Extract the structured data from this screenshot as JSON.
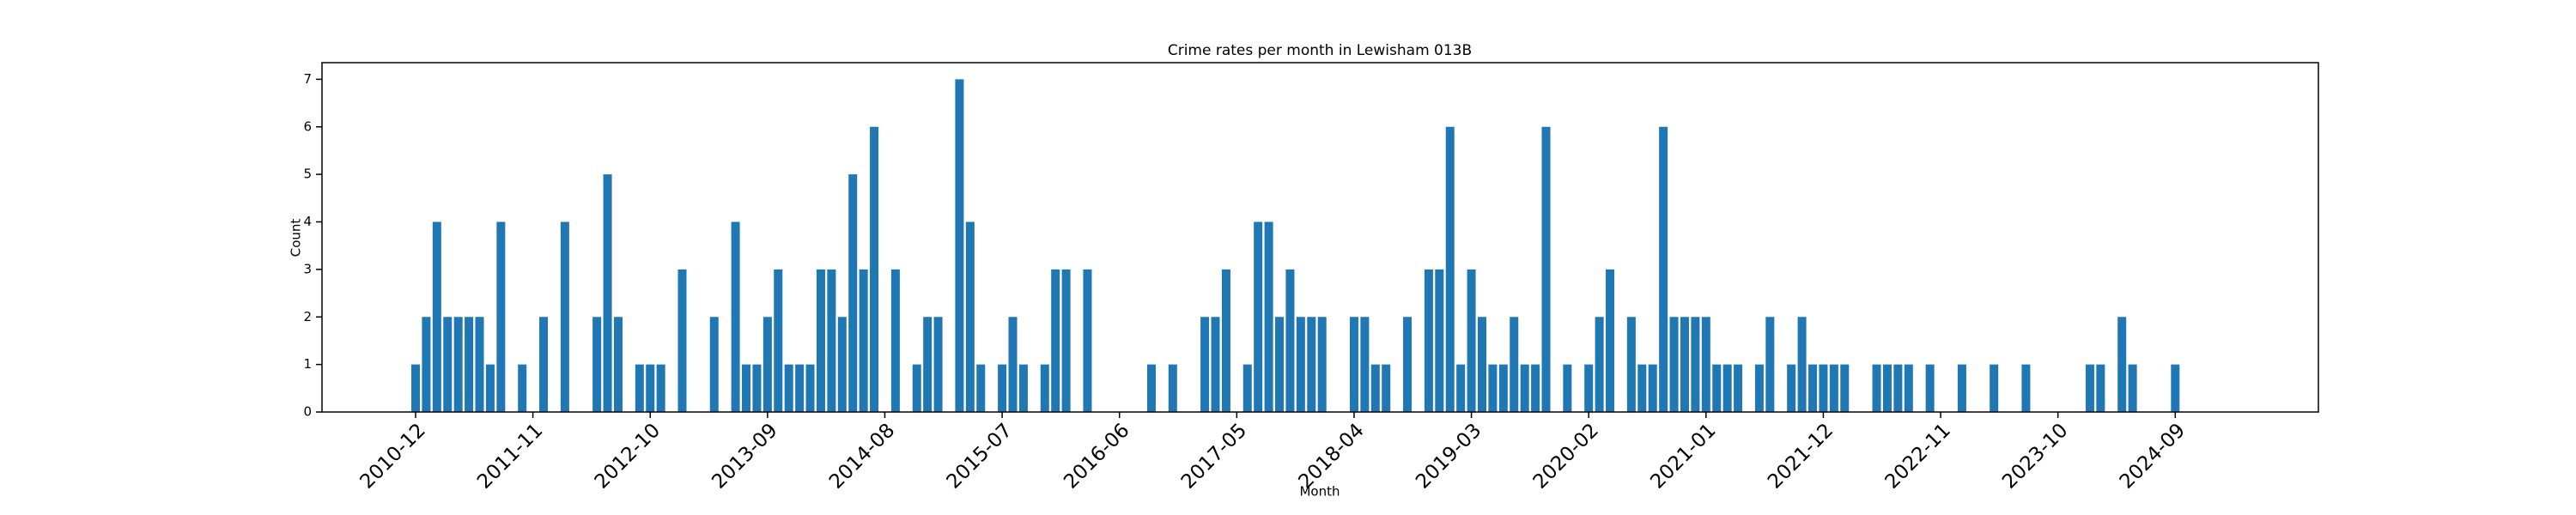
{
  "chart_data": {
    "type": "bar",
    "title": "Crime rates per month in Lewisham 013B",
    "x_label": "Month",
    "y_label": "Count",
    "color": "#1f77b4",
    "categories": [
      "2010-12",
      null,
      null,
      null,
      null,
      null,
      null,
      null,
      null,
      null,
      null,
      "2011-11",
      null,
      null,
      null,
      null,
      null,
      null,
      null,
      null,
      null,
      null,
      "2012-10",
      null,
      null,
      null,
      null,
      null,
      null,
      null,
      null,
      null,
      null,
      "2013-09",
      null,
      null,
      null,
      null,
      null,
      null,
      null,
      null,
      null,
      null,
      "2014-08",
      null,
      null,
      null,
      null,
      null,
      null,
      null,
      null,
      null,
      null,
      "2015-07",
      null,
      null,
      null,
      null,
      null,
      null,
      null,
      null,
      null,
      null,
      "2016-06",
      null,
      null,
      null,
      null,
      null,
      null,
      null,
      null,
      null,
      null,
      "2017-05",
      null,
      null,
      null,
      null,
      null,
      null,
      null,
      null,
      null,
      null,
      "2018-04",
      null,
      null,
      null,
      null,
      null,
      null,
      null,
      null,
      null,
      null,
      "2019-03",
      null,
      null,
      null,
      null,
      null,
      null,
      null,
      null,
      null,
      null,
      "2020-02",
      null,
      null,
      null,
      null,
      null,
      null,
      null,
      null,
      null,
      null,
      "2021-01",
      null,
      null,
      null,
      null,
      null,
      null,
      null,
      null,
      null,
      null,
      "2021-12",
      null,
      null,
      null,
      null,
      null,
      null,
      null,
      null,
      null,
      null,
      "2022-11",
      null,
      null,
      null,
      null,
      null,
      null,
      null,
      null,
      null,
      null,
      "2023-10",
      null,
      null,
      null,
      null,
      null,
      null,
      null,
      null,
      null,
      null,
      "2024-09"
    ],
    "values": [
      1,
      2,
      4,
      2,
      2,
      2,
      2,
      1,
      4,
      null,
      1,
      null,
      2,
      null,
      4,
      null,
      null,
      2,
      5,
      2,
      null,
      1,
      1,
      1,
      null,
      3,
      null,
      null,
      2,
      null,
      4,
      1,
      1,
      2,
      3,
      1,
      1,
      1,
      3,
      3,
      2,
      5,
      3,
      6,
      null,
      3,
      null,
      1,
      2,
      2,
      null,
      7,
      4,
      1,
      null,
      1,
      2,
      1,
      null,
      1,
      3,
      3,
      null,
      3,
      null,
      null,
      null,
      null,
      null,
      1,
      null,
      1,
      null,
      null,
      2,
      2,
      3,
      null,
      1,
      4,
      4,
      2,
      3,
      2,
      2,
      2,
      null,
      null,
      2,
      2,
      1,
      1,
      null,
      2,
      null,
      3,
      3,
      6,
      1,
      3,
      2,
      1,
      1,
      2,
      1,
      1,
      6,
      null,
      1,
      null,
      1,
      2,
      3,
      null,
      2,
      1,
      1,
      6,
      2,
      2,
      2,
      2,
      1,
      1,
      1,
      null,
      1,
      2,
      null,
      1,
      2,
      1,
      1,
      1,
      1,
      null,
      null,
      1,
      1,
      1,
      1,
      null,
      1,
      null,
      null,
      1,
      null,
      null,
      1,
      null,
      null,
      1,
      null,
      null,
      null,
      null,
      null,
      1,
      1,
      null,
      2,
      1,
      null,
      null,
      null,
      1
    ],
    "ylim": [
      0,
      7.35
    ],
    "yticks": [
      0,
      1,
      2,
      3,
      4,
      5,
      6,
      7
    ],
    "grid": false
  }
}
